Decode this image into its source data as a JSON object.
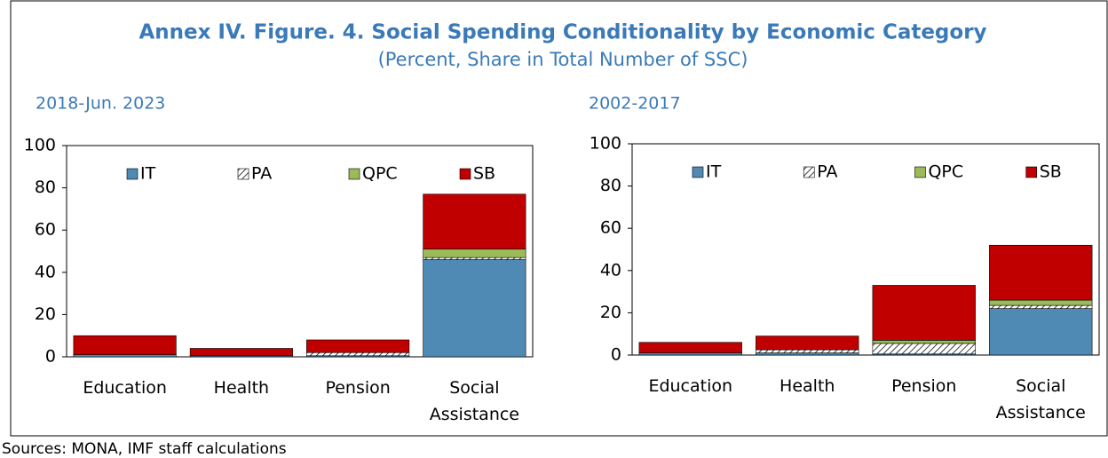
{
  "title": "Annex IV. Figure. 4. Social Spending Conditionality by Economic Category",
  "subtitle": "(Percent, Share in Total Number of SSC)",
  "source": "Sources: MONA, IMF staff calculations",
  "chart_data": [
    {
      "type": "bar",
      "stacked": true,
      "title": "2018-Jun. 2023",
      "categories": [
        "Education",
        "Health",
        "Pension",
        "Social Assistance"
      ],
      "series": [
        {
          "name": "IT",
          "color": "#4f8ab4",
          "values": [
            1,
            0.5,
            0.5,
            46
          ]
        },
        {
          "name": "PA",
          "color": "hatch",
          "values": [
            0,
            0,
            1.5,
            1
          ]
        },
        {
          "name": "QPC",
          "color": "#9bbb59",
          "values": [
            0,
            0,
            0,
            4
          ]
        },
        {
          "name": "SB",
          "color": "#c00000",
          "values": [
            9,
            3.5,
            6,
            26
          ]
        }
      ],
      "ylim": [
        0,
        100
      ],
      "yticks": [
        0,
        20,
        40,
        60,
        80,
        100
      ],
      "legend": "top"
    },
    {
      "type": "bar",
      "stacked": true,
      "title": "2002-2017",
      "categories": [
        "Education",
        "Health",
        "Pension",
        "Social Assistance"
      ],
      "series": [
        {
          "name": "IT",
          "color": "#4f8ab4",
          "values": [
            1,
            1,
            0.5,
            22
          ]
        },
        {
          "name": "PA",
          "color": "hatch",
          "values": [
            0,
            1.5,
            5,
            1.5
          ]
        },
        {
          "name": "QPC",
          "color": "#9bbb59",
          "values": [
            0,
            0,
            1.5,
            2.5
          ]
        },
        {
          "name": "SB",
          "color": "#c00000",
          "values": [
            5,
            6.5,
            26,
            26
          ]
        }
      ],
      "ylim": [
        0,
        100
      ],
      "yticks": [
        0,
        20,
        40,
        60,
        80,
        100
      ],
      "legend": "top"
    }
  ]
}
